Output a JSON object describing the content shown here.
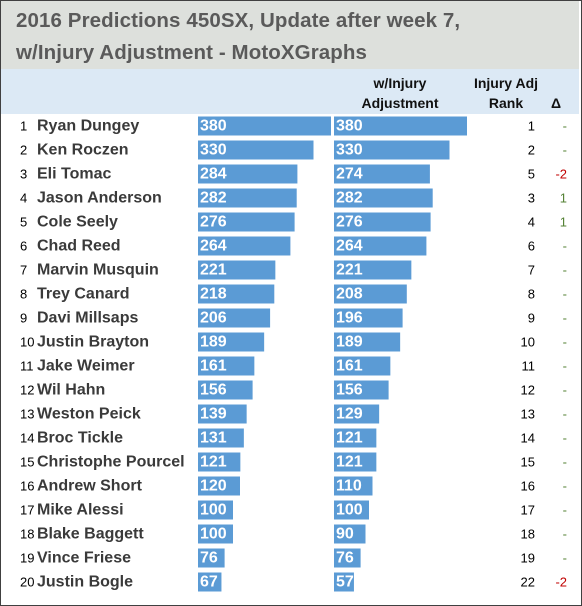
{
  "title": {
    "line1": "2016 Predictions 450SX, Update after week 7,",
    "line2": "w/Injury Adjustment - MotoXGraphs"
  },
  "headers": {
    "adjustment": "w/Injury Adjustment",
    "adj_rank": "Injury Adj Rank",
    "delta": "Δ"
  },
  "colors": {
    "bar": "#5b9bd5",
    "title_band": "#dde0dc",
    "header_band": "#dce9f5",
    "delta_positive": "#548235",
    "delta_negative": "#c00000",
    "delta_neutral": "#548235"
  },
  "chart_data": {
    "type": "bar",
    "orientation": "horizontal",
    "categories": [
      "Ryan Dungey",
      "Ken Roczen",
      "Eli Tomac",
      "Jason Anderson",
      "Cole Seely",
      "Chad Reed",
      "Marvin Musquin",
      "Trey Canard",
      "Davi Millsaps",
      "Justin Brayton",
      "Jake Weimer",
      "Wil Hahn",
      "Weston Peick",
      "Broc Tickle",
      "Christophe Pourcel",
      "Andrew Short",
      "Mike Alessi",
      "Blake Baggett",
      "Vince Friese",
      "Justin Bogle"
    ],
    "ranks": [
      "1",
      "2",
      "3",
      "4",
      "5",
      "6",
      "7",
      "8",
      "9",
      "10",
      "11",
      "12",
      "13",
      "14",
      "15",
      "16",
      "17",
      "18",
      "19",
      "20"
    ],
    "series": [
      {
        "values": [
          380,
          330,
          284,
          282,
          276,
          264,
          221,
          218,
          206,
          189,
          161,
          156,
          139,
          131,
          121,
          120,
          100,
          100,
          76,
          67
        ]
      },
      {
        "name": "w/Injury Adjustment",
        "values": [
          380,
          330,
          274,
          282,
          276,
          264,
          221,
          208,
          196,
          189,
          161,
          156,
          129,
          121,
          121,
          110,
          100,
          90,
          76,
          57
        ]
      }
    ],
    "adj_rank": [
      "1",
      "2",
      "5",
      "3",
      "4",
      "6",
      "7",
      "8",
      "9",
      "10",
      "11",
      "12",
      "13",
      "14",
      "15",
      "16",
      "17",
      "18",
      "19",
      "22"
    ],
    "delta": [
      "-",
      "-",
      "-2",
      "1",
      "1",
      "-",
      "-",
      "-",
      "-",
      "-",
      "-",
      "-",
      "-",
      "-",
      "-",
      "-",
      "-",
      "-",
      "-",
      "-2"
    ],
    "xlim": [
      0,
      380
    ]
  }
}
